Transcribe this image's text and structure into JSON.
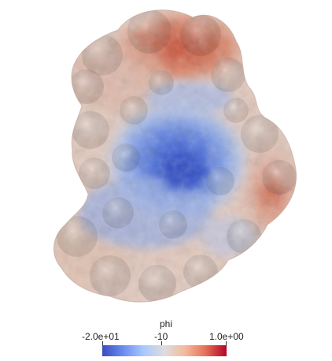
{
  "colorbar": {
    "title": "phi",
    "min_label": "-2.0e+01",
    "mid_label": "-10",
    "max_label": "1.0e+00",
    "colormap": [
      "#3b4cc0",
      "#6b8df0",
      "#aac7fd",
      "#dddddd",
      "#f4b89c",
      "#e57058",
      "#b40426"
    ]
  },
  "scene": {
    "background": "#ffffff",
    "positive_color": "#c85a3c",
    "negative_color": "#3a5bd8",
    "neutral_color": "#e6d2c8"
  }
}
